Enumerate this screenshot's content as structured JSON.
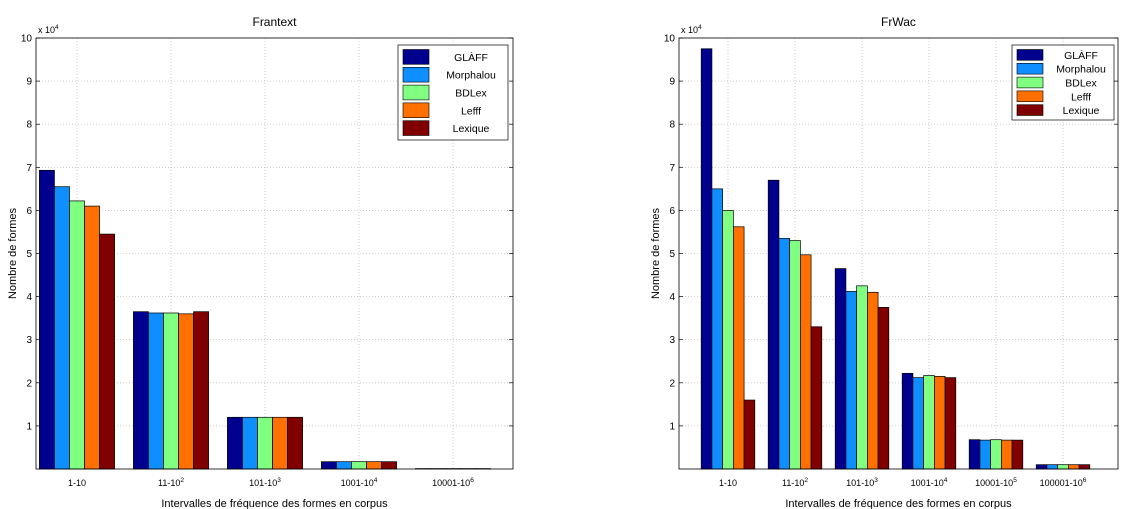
{
  "chart_data": [
    {
      "type": "bar",
      "title": "Frantext",
      "xlabel": "Intervalles de fréquence des formes en corpus",
      "ylabel": "Nombre de formes",
      "y_multiplier": "x 10^4",
      "ylim": [
        0,
        10
      ],
      "yticks": [
        1,
        2,
        3,
        4,
        5,
        6,
        7,
        8,
        9,
        10
      ],
      "grid": true,
      "legend_position": "top-right",
      "categories": [
        {
          "base": "1-10",
          "sup": ""
        },
        {
          "base": "11-10",
          "sup": "2"
        },
        {
          "base": "101-10",
          "sup": "3"
        },
        {
          "base": "1001-10",
          "sup": "4"
        },
        {
          "base": "10001-10",
          "sup": "6"
        }
      ],
      "series": [
        {
          "name": "GLÀFF",
          "color": "#00008f",
          "values": [
            6.93,
            3.65,
            1.2,
            0.17,
            0.01
          ]
        },
        {
          "name": "Morphalou",
          "color": "#0f8fff",
          "values": [
            6.55,
            3.62,
            1.2,
            0.17,
            0.01
          ]
        },
        {
          "name": "BDLex",
          "color": "#80ff80",
          "values": [
            6.22,
            3.62,
            1.2,
            0.17,
            0.01
          ]
        },
        {
          "name": "Lefff",
          "color": "#ff7000",
          "values": [
            6.1,
            3.6,
            1.2,
            0.17,
            0.01
          ]
        },
        {
          "name": "Lexique",
          "color": "#800000",
          "values": [
            5.45,
            3.65,
            1.2,
            0.17,
            0.01
          ]
        }
      ]
    },
    {
      "type": "bar",
      "title": "FrWac",
      "xlabel": "Intervalles de fréquence des formes en corpus",
      "ylabel": "Nombre de formes",
      "y_multiplier": "x 10^4",
      "ylim": [
        0,
        10
      ],
      "yticks": [
        1,
        2,
        3,
        4,
        5,
        6,
        7,
        8,
        9,
        10
      ],
      "grid": true,
      "legend_position": "top-right",
      "categories": [
        {
          "base": "1-10",
          "sup": ""
        },
        {
          "base": "11-10",
          "sup": "2"
        },
        {
          "base": "101-10",
          "sup": "3"
        },
        {
          "base": "1001-10",
          "sup": "4"
        },
        {
          "base": "10001-10",
          "sup": "5"
        },
        {
          "base": "100001-10",
          "sup": "6"
        }
      ],
      "series": [
        {
          "name": "GLÀFF",
          "color": "#00008f",
          "values": [
            9.75,
            6.7,
            4.65,
            2.22,
            0.68,
            0.1
          ]
        },
        {
          "name": "Morphalou",
          "color": "#0f8fff",
          "values": [
            6.5,
            5.35,
            4.12,
            2.12,
            0.67,
            0.1
          ]
        },
        {
          "name": "BDLex",
          "color": "#80ff80",
          "values": [
            6.0,
            5.3,
            4.25,
            2.17,
            0.68,
            0.1
          ]
        },
        {
          "name": "Lefff",
          "color": "#ff7000",
          "values": [
            5.62,
            4.97,
            4.1,
            2.15,
            0.67,
            0.1
          ]
        },
        {
          "name": "Lexique",
          "color": "#800000",
          "values": [
            1.6,
            3.3,
            3.75,
            2.12,
            0.67,
            0.1
          ]
        }
      ]
    }
  ]
}
